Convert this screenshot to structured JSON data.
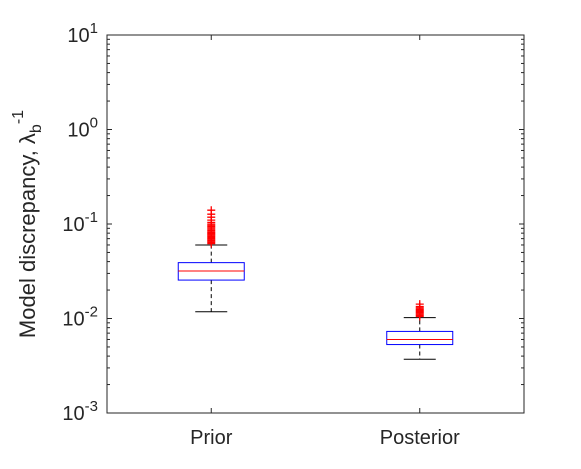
{
  "chart_data": {
    "type": "box",
    "y_scale": "log",
    "ylim": [
      0.001,
      10
    ],
    "ylabel": "Model discrepancy, λ",
    "ylabel_subscript": "b",
    "ylabel_superscript": "-1",
    "y_ticks": [
      {
        "value": 0.001,
        "base": "10",
        "exp": "-3"
      },
      {
        "value": 0.01,
        "base": "10",
        "exp": "-2"
      },
      {
        "value": 0.1,
        "base": "10",
        "exp": "-1"
      },
      {
        "value": 1,
        "base": "10",
        "exp": "0"
      },
      {
        "value": 10,
        "base": "10",
        "exp": "1"
      }
    ],
    "categories": [
      "Prior",
      "Posterior"
    ],
    "boxes": [
      {
        "category": "Prior",
        "whisker_low": 0.0118,
        "q1": 0.0255,
        "median": 0.0318,
        "q3": 0.039,
        "whisker_high": 0.06,
        "outliers": [
          0.062,
          0.064,
          0.066,
          0.068,
          0.07,
          0.072,
          0.074,
          0.076,
          0.078,
          0.08,
          0.082,
          0.085,
          0.088,
          0.091,
          0.094,
          0.097,
          0.1,
          0.104,
          0.11,
          0.118,
          0.127,
          0.14
        ]
      },
      {
        "category": "Posterior",
        "whisker_low": 0.0037,
        "q1": 0.0053,
        "median": 0.006,
        "q3": 0.0073,
        "whisker_high": 0.0102,
        "outliers": [
          0.0105,
          0.0108,
          0.0111,
          0.0114,
          0.0117,
          0.012,
          0.0123,
          0.0126,
          0.013,
          0.0134,
          0.0142
        ]
      }
    ],
    "colors": {
      "box": "#0000ff",
      "median": "#ff0000",
      "whisker": "#000000",
      "outlier": "#ff0000",
      "axes": "#262626"
    }
  }
}
